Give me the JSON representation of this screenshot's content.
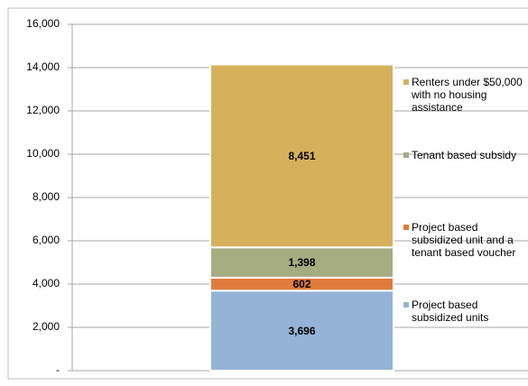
{
  "chart_data": {
    "type": "stacked-bar",
    "categories": [
      null
    ],
    "series": [
      {
        "name": "Project based subsidized units",
        "color": "#95b3d7",
        "values": [
          3696
        ],
        "value_labels": [
          "3,696"
        ]
      },
      {
        "name": "Project based subsidized unit and a tenant based voucher",
        "color": "#e07b3b",
        "values": [
          602
        ],
        "value_labels": [
          "602"
        ]
      },
      {
        "name": "Tenant based subsidy",
        "color": "#a4ac80",
        "values": [
          1398
        ],
        "value_labels": [
          "1,398"
        ]
      },
      {
        "name": "Renters under $50,000 with no housing assistance",
        "color": "#d5b15b",
        "values": [
          8451
        ],
        "value_labels": [
          "8,451"
        ]
      }
    ],
    "ylim": [
      0,
      16000
    ],
    "yticks": [
      {
        "value": 0,
        "label": "-"
      },
      {
        "value": 2000,
        "label": "2,000"
      },
      {
        "value": 4000,
        "label": "4,000"
      },
      {
        "value": 6000,
        "label": "6,000"
      },
      {
        "value": 8000,
        "label": "8,000"
      },
      {
        "value": 10000,
        "label": "10,000"
      },
      {
        "value": 12000,
        "label": "12,000"
      },
      {
        "value": 14000,
        "label": "14,000"
      },
      {
        "value": 16000,
        "label": "16,000"
      }
    ],
    "grid": true,
    "legend": "right"
  }
}
